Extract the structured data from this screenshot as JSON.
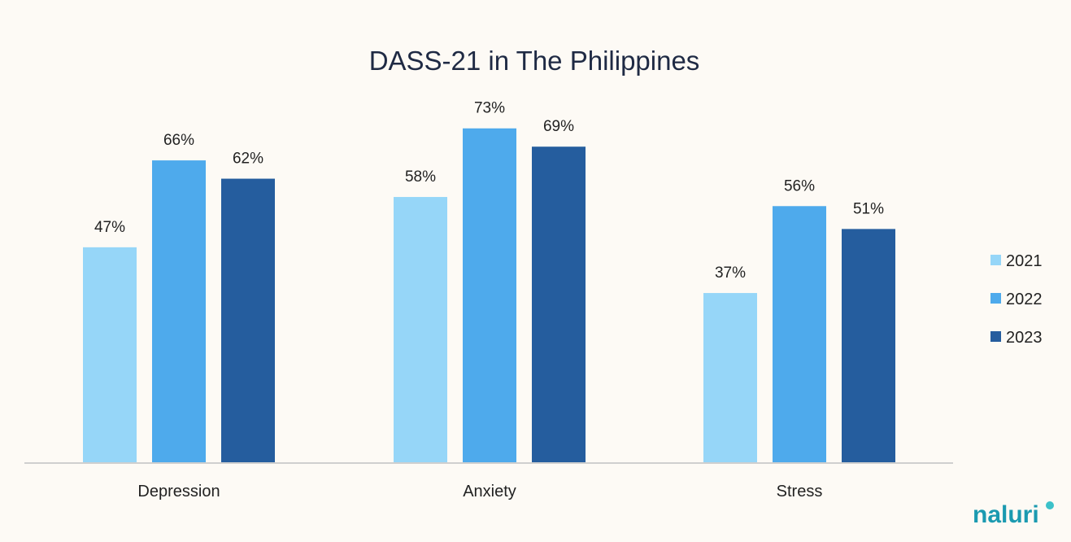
{
  "chart_data": {
    "type": "bar",
    "title": "DASS-21 in The Philippines",
    "categories": [
      "Depression",
      "Anxiety",
      "Stress"
    ],
    "series": [
      {
        "name": "2021",
        "values": [
          47,
          58,
          37
        ],
        "labels": [
          "47%",
          "58%",
          "37%"
        ]
      },
      {
        "name": "2022",
        "values": [
          66,
          73,
          56
        ],
        "labels": [
          "66%",
          "73%",
          "56%"
        ]
      },
      {
        "name": "2023",
        "values": [
          62,
          69,
          51
        ],
        "labels": [
          "62%",
          "69%",
          "51%"
        ]
      }
    ],
    "xlabel": "",
    "ylabel": "",
    "ylim": [
      0,
      80
    ],
    "grid": false,
    "legend_position": "right"
  },
  "colors": {
    "series": [
      "#96d6f8",
      "#4eaaec",
      "#255d9e"
    ],
    "axis": "#cfcfcf",
    "background": "#fdfaf5",
    "brand": "#1b9ab0"
  },
  "brand": {
    "logo_text": "naluri"
  }
}
